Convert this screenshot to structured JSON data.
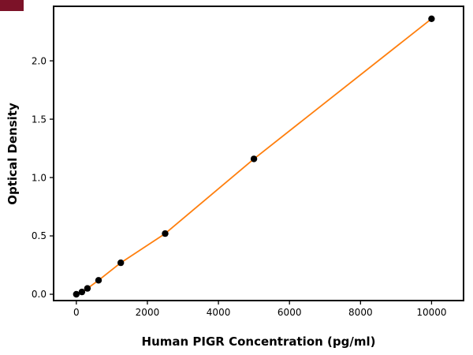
{
  "chart_data": {
    "type": "scatter",
    "title": "",
    "xlabel": "Human PIGR Concentration (pg/ml)",
    "ylabel": "Optical Density",
    "x": [
      0,
      156.25,
      312.5,
      625,
      1250,
      2500,
      5000,
      10000
    ],
    "y": [
      0.0,
      0.02,
      0.05,
      0.12,
      0.27,
      0.52,
      1.16,
      2.36
    ],
    "fit_line": true,
    "x_ticks": [
      0,
      2000,
      4000,
      6000,
      8000,
      10000
    ],
    "x_tick_labels": [
      "0",
      "2000",
      "4000",
      "6000",
      "8000",
      "10000"
    ],
    "y_ticks": [
      0.0,
      0.5,
      1.0,
      1.5,
      2.0
    ],
    "y_tick_labels": [
      "0.0",
      "0.5",
      "1.0",
      "1.5",
      "2.0"
    ],
    "xlim": [
      -640,
      10900
    ],
    "ylim": [
      -0.054,
      2.467
    ],
    "grid": false,
    "legend_position": "none",
    "colors": {
      "line": "#ff7f0e",
      "marker": "#000000",
      "frame": "#000000",
      "background": "#ffffff",
      "corner_artifact": "#7c1228"
    }
  }
}
